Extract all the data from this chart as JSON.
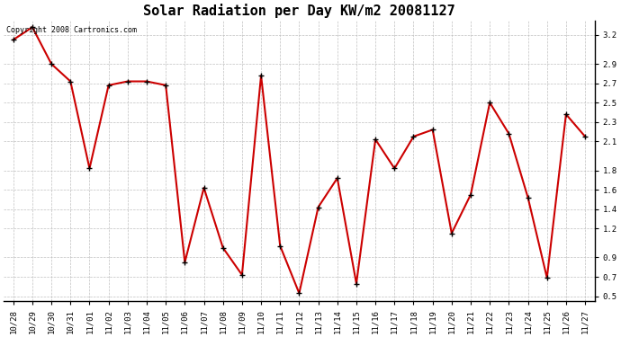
{
  "title": "Solar Radiation per Day KW/m2 20081127",
  "copyright_text": "Copyright 2008 Cartronics.com",
  "labels": [
    "10/28",
    "10/29",
    "10/30",
    "10/31",
    "11/01",
    "11/02",
    "11/03",
    "11/04",
    "11/05",
    "11/06",
    "11/07",
    "11/08",
    "11/09",
    "11/10",
    "11/11",
    "11/12",
    "11/13",
    "11/14",
    "11/15",
    "11/16",
    "11/17",
    "11/18",
    "11/19",
    "11/20",
    "11/21",
    "11/22",
    "11/23",
    "11/24",
    "11/25",
    "11/26",
    "11/27"
  ],
  "values": [
    3.15,
    3.28,
    2.9,
    2.72,
    1.82,
    2.68,
    2.72,
    2.72,
    2.68,
    0.85,
    1.62,
    1.0,
    0.72,
    2.78,
    1.02,
    0.53,
    1.42,
    1.72,
    0.63,
    2.12,
    1.82,
    2.15,
    2.22,
    1.15,
    1.55,
    2.5,
    2.18,
    1.52,
    0.69,
    2.38,
    2.15
  ],
  "line_color": "#cc0000",
  "marker": "+",
  "marker_size": 4,
  "marker_color": "#000000",
  "bg_color": "#ffffff",
  "grid_color": "#c0c0c0",
  "ylim": [
    0.45,
    3.35
  ],
  "yticks": [
    0.5,
    0.7,
    0.9,
    1.2,
    1.4,
    1.6,
    1.8,
    2.1,
    2.3,
    2.5,
    2.7,
    2.9,
    3.2
  ],
  "title_fontsize": 11,
  "tick_fontsize": 6.5,
  "copyright_fontsize": 6.0
}
